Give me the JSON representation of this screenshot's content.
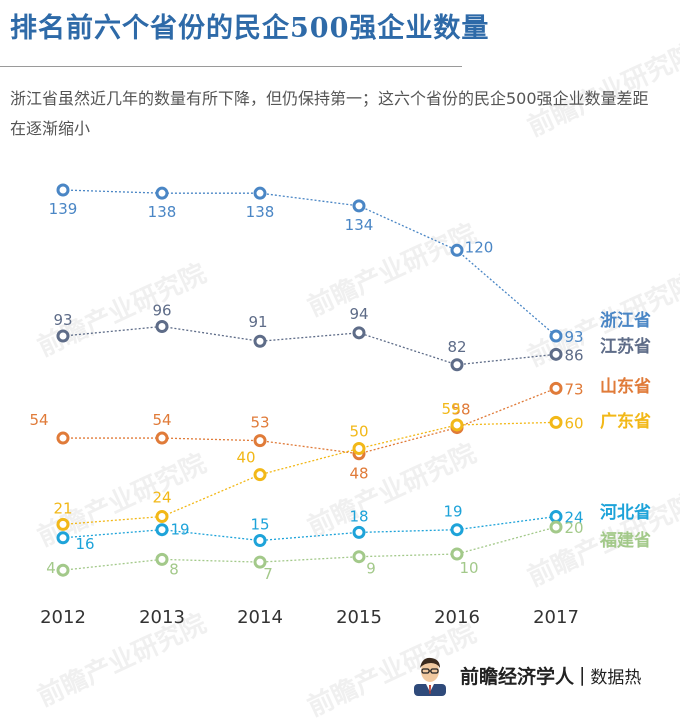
{
  "header": {
    "title": "排名前六个省份的民企500强企业数量",
    "subtitle": "浙江省虽然近几年的数量有所下降，但仍保持第一；这六个省份的民企500强企业数量差距在逐渐缩小"
  },
  "footer": {
    "brand": "前瞻经济学人",
    "separator": "|",
    "section": "数据热"
  },
  "watermark": {
    "text": "前瞻产业研究院"
  },
  "chart_data": {
    "type": "line",
    "x": [
      "2012",
      "2013",
      "2014",
      "2015",
      "2016",
      "2017"
    ],
    "ylim": [
      0,
      145
    ],
    "grid": false,
    "legend": "right-end labels",
    "series": [
      {
        "name": "浙江省",
        "color": "#4a86c5",
        "values": [
          139,
          138,
          138,
          134,
          120,
          93
        ]
      },
      {
        "name": "江苏省",
        "color": "#5e6c88",
        "values": [
          93,
          96,
          91,
          94,
          82,
          86
        ]
      },
      {
        "name": "山东省",
        "color": "#e07b39",
        "values": [
          54,
          54,
          53,
          48,
          58,
          73
        ]
      },
      {
        "name": "广东省",
        "color": "#f2b818",
        "values": [
          21,
          24,
          40,
          50,
          59,
          60
        ]
      },
      {
        "name": "河北省",
        "color": "#1ea3d9",
        "values": [
          16,
          19,
          15,
          18,
          19,
          24
        ]
      },
      {
        "name": "福建省",
        "color": "#a3c98a",
        "values": [
          4,
          8,
          7,
          9,
          10,
          20
        ]
      }
    ]
  }
}
